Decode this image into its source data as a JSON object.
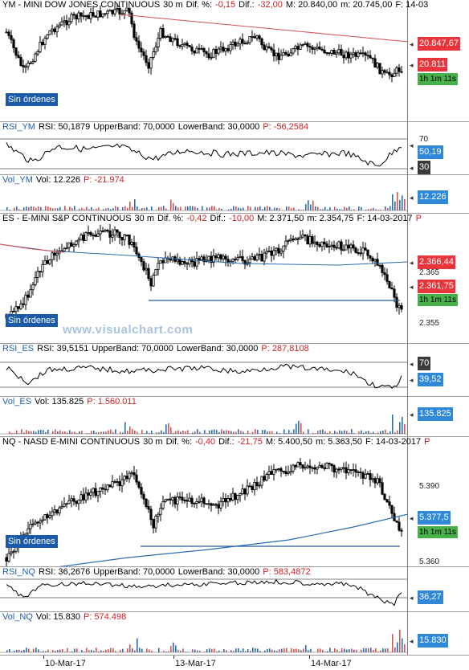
{
  "panes": [
    {
      "id": "ym",
      "header": [
        {
          "text": "YM - MINI DOW JONES CONTINUOUS",
          "color": "#000000"
        },
        {
          "text": "30 m",
          "color": "#000000"
        },
        {
          "text": "Dif. %:",
          "color": "#000000"
        },
        {
          "text": "-0,15",
          "color": "#d21f1f"
        },
        {
          "text": "Dif.:",
          "color": "#000000"
        },
        {
          "text": "-32,00",
          "color": "#d21f1f"
        },
        {
          "text": "M: 20.840,00",
          "color": "#000000"
        },
        {
          "text": "m: 20.745,00",
          "color": "#000000"
        },
        {
          "text": "F: 14-03",
          "color": "#000000"
        }
      ],
      "tags": [
        {
          "text": "20.847,67",
          "kind": "red"
        },
        {
          "text": "20.811",
          "kind": "red"
        },
        {
          "text": "1h 1m 11s",
          "kind": "green"
        }
      ],
      "no_orders": "Sin órdenes"
    },
    {
      "id": "rsi_ym",
      "header": [
        {
          "text": "RSI_YM",
          "color": "#1f5fa8"
        },
        {
          "text": "RSI: 50,1879",
          "color": "#000000"
        },
        {
          "text": "UpperBand: 70,0000",
          "color": "#000000"
        },
        {
          "text": "LowerBand: 30,0000",
          "color": "#000000"
        },
        {
          "text": "P: -56,2584",
          "color": "#d21f1f"
        }
      ],
      "ticks": [
        "70"
      ],
      "tags": [
        {
          "text": "50,19",
          "kind": "blue"
        },
        {
          "text": "30",
          "kind": "dark"
        }
      ]
    },
    {
      "id": "vol_ym",
      "header": [
        {
          "text": "Vol_YM",
          "color": "#1f5fa8"
        },
        {
          "text": "Vol: 12.226",
          "color": "#000000"
        },
        {
          "text": "P: -21.974",
          "color": "#d21f1f"
        }
      ],
      "tags": [
        {
          "text": "12.226",
          "kind": "blue"
        }
      ]
    },
    {
      "id": "es",
      "header": [
        {
          "text": "ES - E-MINI S&P CONTINUOUS",
          "color": "#000000"
        },
        {
          "text": "30 m",
          "color": "#000000"
        },
        {
          "text": "Dif. %:",
          "color": "#000000"
        },
        {
          "text": "-0,42",
          "color": "#d21f1f"
        },
        {
          "text": "Dif.:",
          "color": "#000000"
        },
        {
          "text": "-10,00",
          "color": "#d21f1f"
        },
        {
          "text": "M: 2.371,50",
          "color": "#000000"
        },
        {
          "text": "m: 2.354,75",
          "color": "#000000"
        },
        {
          "text": "F: 14-03-2017",
          "color": "#000000"
        },
        {
          "text": "P",
          "color": "#d21f1f"
        }
      ],
      "ticks": [
        "2.365",
        "2.355"
      ],
      "tags": [
        {
          "text": "2.366,44",
          "kind": "red"
        },
        {
          "text": "2.361,75",
          "kind": "red"
        },
        {
          "text": "1h 1m 11s",
          "kind": "green"
        }
      ],
      "no_orders": "Sin órdenes"
    },
    {
      "id": "rsi_es",
      "header": [
        {
          "text": "RSI_ES",
          "color": "#1f5fa8"
        },
        {
          "text": "RSI: 39,5151",
          "color": "#000000"
        },
        {
          "text": "UpperBand: 70,0000",
          "color": "#000000"
        },
        {
          "text": "LowerBand: 30,0000",
          "color": "#000000"
        },
        {
          "text": "P: 287,8108",
          "color": "#d21f1f"
        }
      ],
      "tags": [
        {
          "text": "70",
          "kind": "dark"
        },
        {
          "text": "39,52",
          "kind": "blue"
        }
      ]
    },
    {
      "id": "vol_es",
      "header": [
        {
          "text": "Vol_ES",
          "color": "#1f5fa8"
        },
        {
          "text": "Vol: 135.825",
          "color": "#000000"
        },
        {
          "text": "P: 1.560.011",
          "color": "#d21f1f"
        }
      ],
      "tags": [
        {
          "text": "135.825",
          "kind": "blue"
        }
      ]
    },
    {
      "id": "nq",
      "header": [
        {
          "text": "NQ - NASD E-MINI CONTINUOUS",
          "color": "#000000"
        },
        {
          "text": "30 m",
          "color": "#000000"
        },
        {
          "text": "Dif. %:",
          "color": "#000000"
        },
        {
          "text": "-0,40",
          "color": "#d21f1f"
        },
        {
          "text": "Dif.:",
          "color": "#000000"
        },
        {
          "text": "-21,75",
          "color": "#d21f1f"
        },
        {
          "text": "M: 5.400,50",
          "color": "#000000"
        },
        {
          "text": "m: 5.363,50",
          "color": "#000000"
        },
        {
          "text": "F: 14-03-2017",
          "color": "#000000"
        },
        {
          "text": "P",
          "color": "#d21f1f"
        }
      ],
      "ticks": [
        "5.390",
        "5.360"
      ],
      "tags": [
        {
          "text": "5.377,5",
          "kind": "blue"
        },
        {
          "text": "1h 1m 11s",
          "kind": "green"
        }
      ],
      "no_orders": "Sin órdenes"
    },
    {
      "id": "rsi_nq",
      "header": [
        {
          "text": "RSI_NQ",
          "color": "#1f5fa8"
        },
        {
          "text": "RSI: 36,2676",
          "color": "#000000"
        },
        {
          "text": "UpperBand: 70,0000",
          "color": "#000000"
        },
        {
          "text": "LowerBand: 30,0000",
          "color": "#000000"
        },
        {
          "text": "P: 583,4872",
          "color": "#d21f1f"
        }
      ],
      "tags": [
        {
          "text": "36,27",
          "kind": "blue"
        }
      ]
    },
    {
      "id": "vol_nq",
      "header": [
        {
          "text": "Vol_NQ",
          "color": "#1f5fa8"
        },
        {
          "text": "Vol: 15.830",
          "color": "#000000"
        },
        {
          "text": "P: 574.498",
          "color": "#d21f1f"
        }
      ],
      "tags": [
        {
          "text": "15.830",
          "kind": "blue"
        }
      ]
    }
  ],
  "watermark": "www.visualchart.com",
  "x_axis": {
    "labels": [
      "10-Mar-17",
      "13-Mar-17",
      "14-Mar-17"
    ]
  },
  "colors": {
    "price": "#000000",
    "trendline": "#d9534f",
    "moving_average": "#2a6db5",
    "support": "#1f5fa8",
    "volume_up": "#2a6db5",
    "volume_down": "#d9534f",
    "rsi": "#000000"
  },
  "chart_data": [
    {
      "type": "candlestick",
      "title": "YM - MINI DOW JONES CONTINUOUS",
      "timeframe": "30 m",
      "x": [
        "10-Mar-17",
        "13-Mar-17",
        "14-Mar-17"
      ],
      "last": 20811,
      "high": 20840,
      "low": 20745,
      "overlays": [
        {
          "name": "trendline",
          "values": [
            20847.67
          ]
        }
      ]
    },
    {
      "type": "line",
      "title": "RSI_YM",
      "last": 50.1879,
      "bands": [
        30,
        70
      ]
    },
    {
      "type": "bar",
      "title": "Vol_YM",
      "last": 12226
    },
    {
      "type": "candlestick",
      "title": "ES - E-MINI S&P CONTINUOUS",
      "timeframe": "30 m",
      "x": [
        "10-Mar-17",
        "13-Mar-17",
        "14-Mar-17"
      ],
      "last": 2361.75,
      "high": 2371.5,
      "low": 2354.75,
      "y_ticks": [
        2365,
        2355
      ],
      "overlays": [
        {
          "name": "moving average",
          "values": [
            2366.44
          ]
        }
      ]
    },
    {
      "type": "line",
      "title": "RSI_ES",
      "last": 39.5151,
      "bands": [
        30,
        70
      ]
    },
    {
      "type": "bar",
      "title": "Vol_ES",
      "last": 135825
    },
    {
      "type": "candlestick",
      "title": "NQ - NASD E-MINI CONTINUOUS",
      "timeframe": "30 m",
      "x": [
        "10-Mar-17",
        "13-Mar-17",
        "14-Mar-17"
      ],
      "last": 5377.5,
      "high": 5400.5,
      "low": 5363.5,
      "y_ticks": [
        5390,
        5360
      ]
    },
    {
      "type": "line",
      "title": "RSI_NQ",
      "last": 36.2676,
      "bands": [
        30,
        70
      ]
    },
    {
      "type": "bar",
      "title": "Vol_NQ",
      "last": 15830
    }
  ]
}
